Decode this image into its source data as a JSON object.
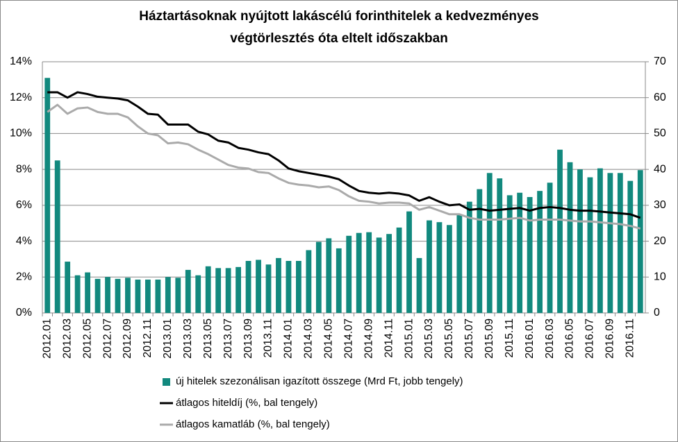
{
  "chart_data": {
    "type": "bar-line",
    "title": [
      "Háztartásoknak nyújtott lakáscélú forinthitelek a kedvezményes",
      "végtörlesztés óta eltelt időszakban"
    ],
    "categories": [
      "2012.01",
      null,
      "2012.03",
      null,
      "2012.05",
      null,
      "2012.07",
      null,
      "2012.09",
      null,
      "2012.11",
      null,
      "2013.01",
      null,
      "2013.03",
      null,
      "2013.05",
      null,
      "2013.07",
      null,
      "2013.09",
      null,
      "2013.11",
      null,
      "2014.01",
      null,
      "2014.03",
      null,
      "2014.05",
      null,
      "2014.07",
      null,
      "2014.09",
      null,
      "2014.11",
      null,
      "2015.01",
      null,
      "2015.03",
      null,
      "2015.05",
      null,
      "2015.07",
      null,
      "2015.09",
      null,
      "2015.11",
      null,
      "2016.01",
      null,
      "2016.03",
      null,
      "2016.05",
      null,
      "2016.07",
      null,
      "2016.09",
      null,
      "2016.11",
      null
    ],
    "series": [
      {
        "name": "új hitelek szezonálisan igazított összege (Mrd Ft, jobb tengely)",
        "type": "bar",
        "axis": "y2",
        "color": "#12897e",
        "values": [
          65.5,
          42.5,
          14.3,
          10.5,
          11.3,
          9.5,
          10,
          9.5,
          9.8,
          9.3,
          9.3,
          9.3,
          10,
          9.8,
          12,
          10.5,
          13,
          12.5,
          12.5,
          12.8,
          14.5,
          14.8,
          13.5,
          15.3,
          14.5,
          14.5,
          17.5,
          19.8,
          20.8,
          18,
          21.5,
          22.3,
          22.5,
          21,
          22,
          23.8,
          28.3,
          15.3,
          25.8,
          25.3,
          24.5,
          27.3,
          31,
          34.5,
          39,
          37.5,
          32.8,
          33.5,
          32.3,
          34,
          36.3,
          45.5,
          42,
          40,
          37.8,
          40.3,
          39,
          39,
          36.8,
          39.8
        ]
      },
      {
        "name": "átlagos hiteldíj (%, bal tengely)",
        "type": "line",
        "color": "#000000",
        "values": [
          12.3,
          12.3,
          12.0,
          12.3,
          12.2,
          12.05,
          12.0,
          11.95,
          11.85,
          11.5,
          11.1,
          11.05,
          10.5,
          10.5,
          10.5,
          10.1,
          9.95,
          9.6,
          9.5,
          9.2,
          9.1,
          8.95,
          8.85,
          8.5,
          8.05,
          7.9,
          7.8,
          7.7,
          7.6,
          7.45,
          7.1,
          6.8,
          6.7,
          6.65,
          6.7,
          6.65,
          6.55,
          6.25,
          6.45,
          6.2,
          6.0,
          6.05,
          5.75,
          5.8,
          5.7,
          5.75,
          5.8,
          5.85,
          5.7,
          5.85,
          5.9,
          5.85,
          5.75,
          5.7,
          5.7,
          5.65,
          5.6,
          5.55,
          5.5,
          5.3
        ]
      },
      {
        "name": "átlagos kamatláb (%, bal tengely)",
        "type": "line",
        "color": "#aaaaaa",
        "values": [
          11.2,
          11.6,
          11.1,
          11.4,
          11.45,
          11.2,
          11.1,
          11.1,
          10.9,
          10.4,
          10.0,
          9.9,
          9.45,
          9.5,
          9.4,
          9.1,
          8.85,
          8.55,
          8.25,
          8.1,
          8.05,
          7.85,
          7.8,
          7.5,
          7.25,
          7.15,
          7.1,
          7.0,
          7.05,
          6.85,
          6.5,
          6.25,
          6.2,
          6.1,
          6.15,
          6.15,
          6.1,
          5.75,
          5.9,
          5.7,
          5.5,
          5.5,
          5.3,
          5.2,
          5.2,
          5.2,
          5.25,
          5.3,
          5.15,
          5.2,
          5.2,
          5.2,
          5.15,
          5.1,
          5.1,
          5.05,
          5.0,
          4.95,
          4.85,
          4.7
        ]
      }
    ],
    "ylim": [
      0,
      14
    ],
    "yticks": [
      {
        "value": 0,
        "label": "0%"
      },
      {
        "value": 2,
        "label": "2%"
      },
      {
        "value": 4,
        "label": "4%"
      },
      {
        "value": 6,
        "label": "6%"
      },
      {
        "value": 8,
        "label": "8%"
      },
      {
        "value": 10,
        "label": "10%"
      },
      {
        "value": 12,
        "label": "12%"
      },
      {
        "value": 14,
        "label": "14%"
      }
    ],
    "y2lim": [
      0,
      70
    ],
    "y2ticks": [
      0,
      10,
      20,
      30,
      40,
      50,
      60,
      70
    ],
    "grid": true
  }
}
